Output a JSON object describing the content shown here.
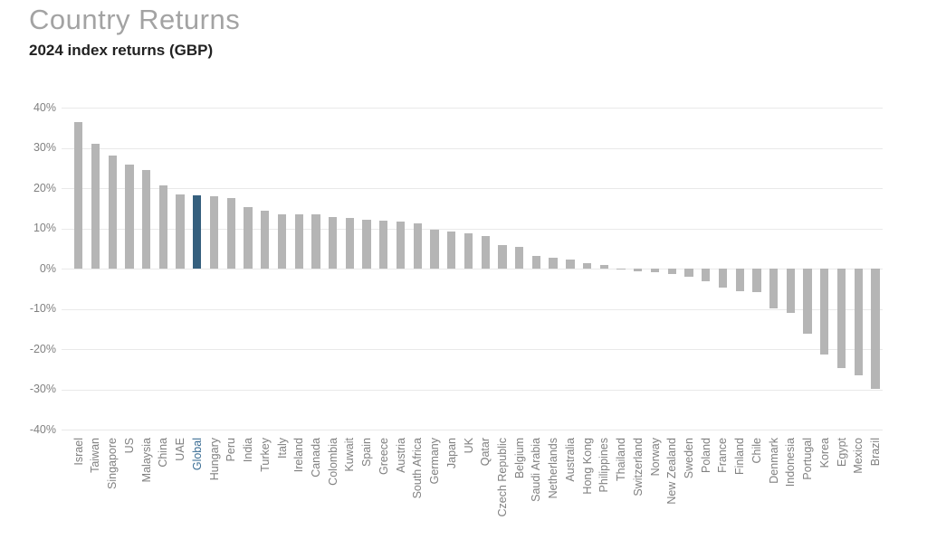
{
  "header": {
    "title": "Country Returns",
    "subtitle": "2024 index returns (GBP)"
  },
  "chart_data": {
    "type": "bar",
    "title": "Country Returns",
    "subtitle": "2024 index returns (GBP)",
    "xlabel": "",
    "ylabel": "",
    "ylim": [
      -40,
      40
    ],
    "yticks": [
      "40%",
      "30%",
      "20%",
      "10%",
      "0%",
      "-10%",
      "-20%",
      "-30%",
      "-40%"
    ],
    "ytick_values": [
      40,
      30,
      20,
      10,
      0,
      -10,
      -20,
      -30,
      -40
    ],
    "grid": true,
    "legend": "none",
    "bar_color": "#b5b5b5",
    "highlight_category": "Global",
    "highlight_bar_color": "#36607e",
    "highlight_label_color": "#3a6d94",
    "axis_label_color": "#808080",
    "categories": [
      "Israel",
      "Taiwan",
      "Singapore",
      "US",
      "Malaysia",
      "China",
      "UAE",
      "Global",
      "Hungary",
      "Peru",
      "India",
      "Turkey",
      "Italy",
      "Ireland",
      "Canada",
      "Colombia",
      "Kuwait",
      "Spain",
      "Greece",
      "Austria",
      "South Africa",
      "Germany",
      "Japan",
      "UK",
      "Qatar",
      "Czech Republic",
      "Belgium",
      "Saudi Arabia",
      "Netherlands",
      "Australia",
      "Hong Kong",
      "Philippines",
      "Thailand",
      "Switzerland",
      "Norway",
      "New Zealand",
      "Sweden",
      "Poland",
      "France",
      "Finland",
      "Chile",
      "Denmark",
      "Indonesia",
      "Portugal",
      "Korea",
      "Egypt",
      "Mexico",
      "Brazil"
    ],
    "values": [
      36.5,
      31.0,
      28.0,
      25.9,
      24.5,
      20.6,
      18.4,
      18.3,
      17.9,
      17.6,
      15.2,
      14.3,
      13.6,
      13.5,
      13.5,
      12.8,
      12.7,
      12.2,
      11.9,
      11.8,
      11.3,
      9.7,
      9.2,
      8.7,
      8.0,
      5.8,
      5.5,
      3.1,
      2.6,
      2.2,
      1.4,
      1.0,
      -0.3,
      -0.7,
      -0.9,
      -1.4,
      -2.0,
      -3.1,
      -4.8,
      -5.7,
      -5.8,
      -9.8,
      -11.0,
      -16.2,
      -21.3,
      -24.8,
      -26.5,
      -29.9
    ]
  }
}
